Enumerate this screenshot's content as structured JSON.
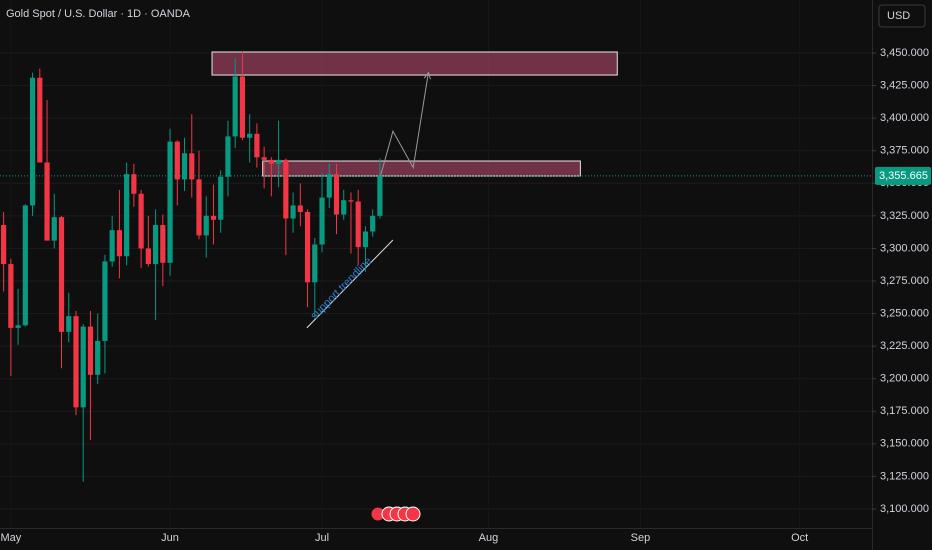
{
  "chart_data": {
    "type": "candlestick",
    "title": "Gold Spot / U.S. Dollar · 1D · OANDA",
    "currency": "USD",
    "up_color": "#089981",
    "down_color": "#f23645",
    "grid": true,
    "x": [
      0,
      1,
      2,
      3,
      4,
      5,
      6,
      7,
      8,
      9,
      10,
      11,
      12,
      13,
      14,
      15,
      16,
      17,
      18,
      19,
      20,
      21,
      22,
      23,
      24,
      25,
      26,
      27,
      28,
      29,
      30,
      31,
      32,
      33,
      34,
      35,
      36,
      37,
      38,
      39,
      40,
      41,
      42,
      43,
      44,
      45,
      46,
      47,
      48,
      49,
      50,
      51,
      52
    ],
    "open": [
      3318,
      3288,
      3239,
      3241,
      3333,
      3431,
      3366,
      3306,
      3324,
      3236,
      3248,
      3178,
      3240,
      3203,
      3229,
      3290,
      3314,
      3294,
      3357,
      3342,
      3300,
      3288,
      3318,
      3289,
      3382,
      3353,
      3373,
      3353,
      3310,
      3325,
      3322,
      3355,
      3386,
      3432,
      3385,
      3388,
      3370,
      3368,
      3365,
      3368,
      3323,
      3333,
      3328,
      3274,
      3303,
      3339,
      3357,
      3326,
      3337,
      3336,
      3301,
      3313,
      3325
    ],
    "high": [
      3328,
      3292,
      3269,
      3334,
      3435,
      3438,
      3414,
      3342,
      3325,
      3266,
      3252,
      3242,
      3252,
      3250,
      3295,
      3325,
      3345,
      3366,
      3365,
      3345,
      3325,
      3330,
      3326,
      3392,
      3383,
      3385,
      3403,
      3375,
      3340,
      3349,
      3360,
      3398,
      3446,
      3451,
      3403,
      3396,
      3378,
      3370,
      3398,
      3369,
      3343,
      3350,
      3330,
      3308,
      3358,
      3365,
      3365,
      3345,
      3343,
      3345,
      3317,
      3330,
      3369
    ],
    "low": [
      3267,
      3202,
      3226,
      3240,
      3325,
      3367,
      3306,
      3300,
      3208,
      3228,
      3172,
      3121,
      3153,
      3196,
      3204,
      3286,
      3277,
      3287,
      3332,
      3285,
      3286,
      3245,
      3271,
      3279,
      3333,
      3344,
      3339,
      3307,
      3293,
      3303,
      3312,
      3340,
      3377,
      3383,
      3366,
      3362,
      3346,
      3340,
      3347,
      3295,
      3312,
      3317,
      3255,
      3247,
      3297,
      3331,
      3311,
      3322,
      3296,
      3287,
      3282,
      3309,
      3323
    ],
    "close": [
      3288,
      3239,
      3241,
      3333,
      3431,
      3366,
      3306,
      3324,
      3236,
      3248,
      3178,
      3240,
      3203,
      3229,
      3290,
      3314,
      3294,
      3357,
      3342,
      3300,
      3288,
      3318,
      3289,
      3382,
      3353,
      3373,
      3353,
      3310,
      3325,
      3322,
      3355,
      3386,
      3432,
      3385,
      3388,
      3370,
      3368,
      3365,
      3368,
      3323,
      3333,
      3328,
      3274,
      3303,
      3339,
      3357,
      3326,
      3337,
      3336,
      3301,
      3313,
      3325,
      3355.665
    ],
    "xlim": [
      -0.5,
      120
    ],
    "xticks": [
      {
        "value": 1,
        "label": "May"
      },
      {
        "value": 23,
        "label": "Jun"
      },
      {
        "value": 44,
        "label": "Jul"
      },
      {
        "value": 67,
        "label": "Aug"
      },
      {
        "value": 88,
        "label": "Sep"
      },
      {
        "value": 110,
        "label": "Oct"
      }
    ],
    "ylim": [
      3085.4,
      3490.7
    ],
    "yticks": [
      {
        "value": 3100,
        "label": "3,100.000"
      },
      {
        "value": 3125,
        "label": "3,125.000"
      },
      {
        "value": 3150,
        "label": "3,150.000"
      },
      {
        "value": 3175,
        "label": "3,175.000"
      },
      {
        "value": 3200,
        "label": "3,200.000"
      },
      {
        "value": 3225,
        "label": "3,225.000"
      },
      {
        "value": 3250,
        "label": "3,250.000"
      },
      {
        "value": 3275,
        "label": "3,275.000"
      },
      {
        "value": 3300,
        "label": "3,300.000"
      },
      {
        "value": 3325,
        "label": "3,325.000"
      },
      {
        "value": 3350,
        "label": "3,350.000"
      },
      {
        "value": 3375,
        "label": "3,375.000"
      },
      {
        "value": 3400,
        "label": "3,400.000"
      },
      {
        "value": 3425,
        "label": "3,425.000"
      },
      {
        "value": 3450,
        "label": "3,450.000"
      }
    ],
    "last_price": {
      "value": 3355.665,
      "label": "3,355.665"
    },
    "zones": [
      {
        "x": [
          28.8,
          84.8
        ],
        "y": [
          3433.1,
          3450.8
        ]
      },
      {
        "x": [
          35.8,
          79.7
        ],
        "y": [
          3355.6,
          3367.1
        ]
      }
    ],
    "projection": {
      "x": [
        52.0,
        53.8,
        56.6,
        58.7
      ],
      "y": [
        3354,
        3390,
        3362,
        3435
      ]
    },
    "trendline": {
      "label": "support trendline",
      "x": [
        41.9,
        53.8
      ],
      "y": [
        3239,
        3306.5
      ]
    }
  }
}
